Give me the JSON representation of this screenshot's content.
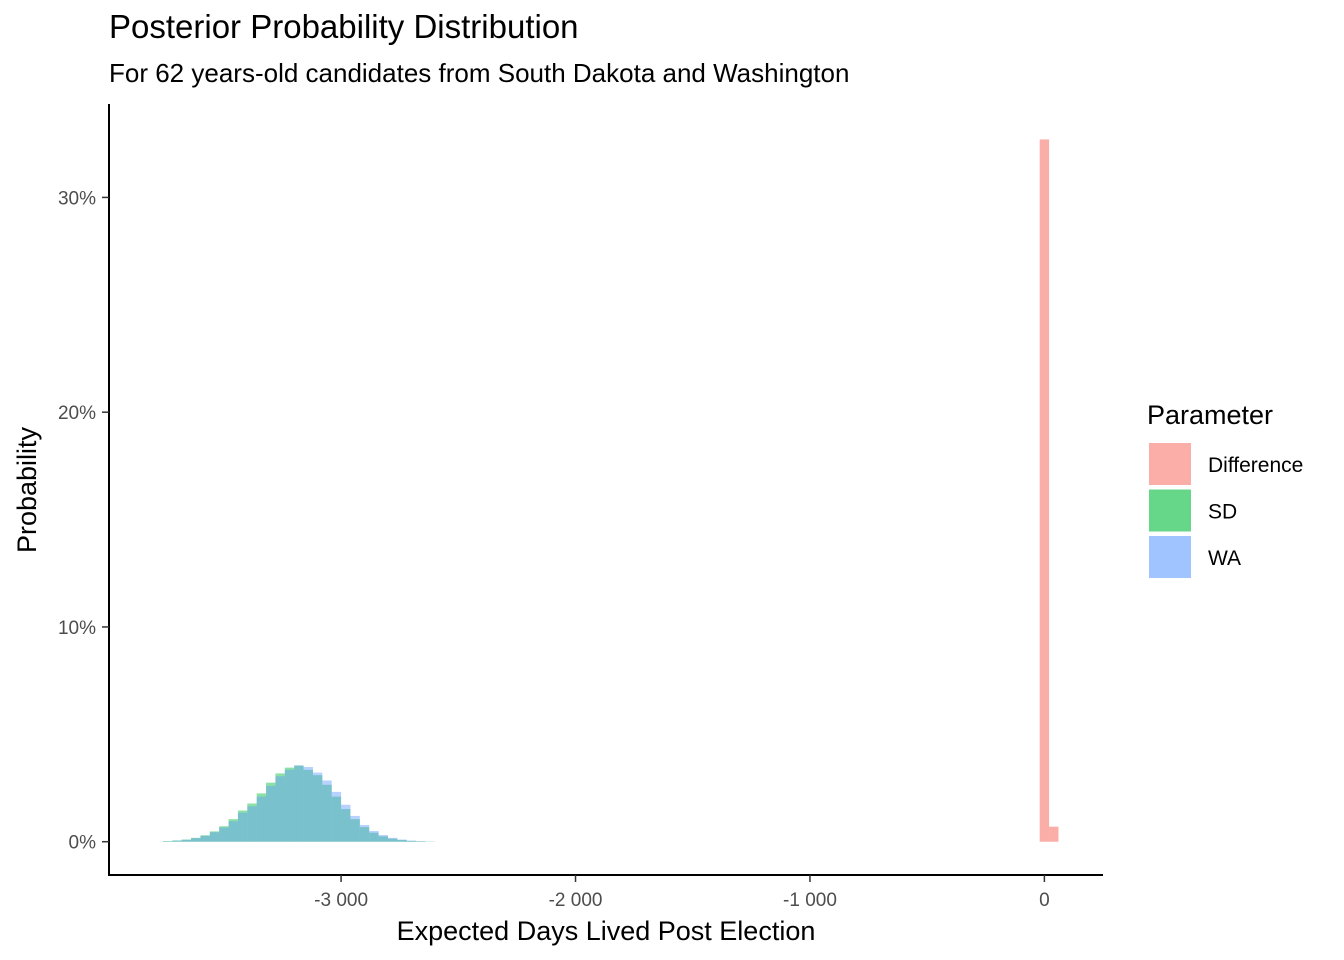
{
  "chart_data": {
    "type": "bar",
    "title": "Posterior Probability Distribution",
    "subtitle": "For 62 years-old candidates from South Dakota and Washington",
    "xlabel": "Expected Days Lived Post Election",
    "ylabel": "Probability",
    "xlim": [
      -3990,
      250
    ],
    "ylim": [
      -0.0155,
      0.3435
    ],
    "x_ticks": [
      {
        "value": -3000,
        "label": "-3 000"
      },
      {
        "value": -2000,
        "label": "-2 000"
      },
      {
        "value": -1000,
        "label": "-1 000"
      },
      {
        "value": 0,
        "label": "0"
      }
    ],
    "y_ticks": [
      {
        "value": 0,
        "label": "0%"
      },
      {
        "value": 0.1,
        "label": "10%"
      },
      {
        "value": 0.2,
        "label": "20%"
      },
      {
        "value": 0.3,
        "label": "30%"
      }
    ],
    "grid": false,
    "legend": {
      "title": "Parameter",
      "position": "right",
      "entries": [
        {
          "name": "Difference",
          "color": "#F8766D"
        },
        {
          "name": "SD",
          "color": "#00BA38"
        },
        {
          "name": "WA",
          "color": "#619CFF"
        }
      ]
    },
    "bin_width": 40,
    "series": [
      {
        "name": "Difference",
        "color": "#F8766D",
        "opacity": 0.6,
        "bin_starts": [
          -20,
          20
        ],
        "values": [
          0.327,
          0.007
        ]
      },
      {
        "name": "SD",
        "color": "#00BA38",
        "opacity": 0.45,
        "bin_starts": [
          -3760,
          -3720,
          -3680,
          -3640,
          -3600,
          -3560,
          -3520,
          -3480,
          -3440,
          -3400,
          -3360,
          -3320,
          -3280,
          -3240,
          -3200,
          -3160,
          -3120,
          -3080,
          -3040,
          -3000,
          -2960,
          -2920,
          -2880,
          -2840,
          -2800,
          -2760,
          -2720,
          -2680,
          -2640
        ],
        "values": [
          0.0003,
          0.0006,
          0.001,
          0.0018,
          0.003,
          0.0048,
          0.0072,
          0.0105,
          0.0145,
          0.0178,
          0.0225,
          0.0275,
          0.0318,
          0.0345,
          0.0355,
          0.0335,
          0.031,
          0.0265,
          0.021,
          0.0152,
          0.0105,
          0.0068,
          0.0042,
          0.0025,
          0.0014,
          0.0008,
          0.0004,
          0.0002,
          0.0001
        ]
      },
      {
        "name": "WA",
        "color": "#619CFF",
        "opacity": 0.45,
        "bin_starts": [
          -3760,
          -3720,
          -3680,
          -3640,
          -3600,
          -3560,
          -3520,
          -3480,
          -3440,
          -3400,
          -3360,
          -3320,
          -3280,
          -3240,
          -3200,
          -3160,
          -3120,
          -3080,
          -3040,
          -3000,
          -2960,
          -2920,
          -2880,
          -2840,
          -2800,
          -2760,
          -2720,
          -2680,
          -2640
        ],
        "values": [
          0.0002,
          0.0005,
          0.0009,
          0.0016,
          0.0027,
          0.0044,
          0.0066,
          0.0095,
          0.0135,
          0.0165,
          0.021,
          0.026,
          0.0305,
          0.0335,
          0.0355,
          0.0348,
          0.0322,
          0.0285,
          0.0232,
          0.0172,
          0.012,
          0.0078,
          0.005,
          0.0031,
          0.0018,
          0.001,
          0.0005,
          0.0003,
          0.0001
        ]
      }
    ]
  }
}
